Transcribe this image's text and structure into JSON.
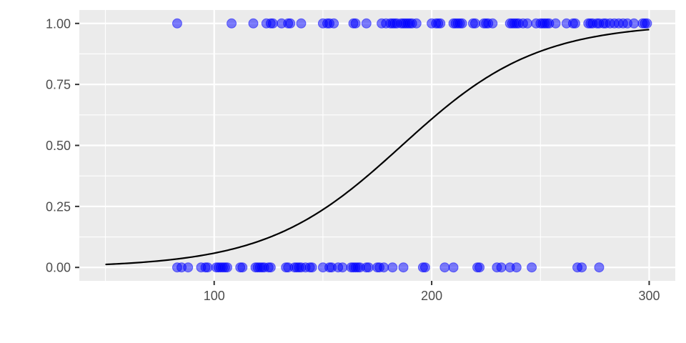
{
  "chart_data": {
    "type": "scatter",
    "title": "",
    "xlabel": "",
    "ylabel": "",
    "xlim": [
      38,
      312
    ],
    "ylim": [
      -0.055,
      1.055
    ],
    "x_ticks": [
      100,
      200,
      300
    ],
    "x_tick_labels": [
      "100",
      "200",
      "300"
    ],
    "y_ticks": [
      0,
      0.25,
      0.5,
      0.75,
      1
    ],
    "y_tick_labels": [
      "0.00",
      "0.25",
      "0.50",
      "0.75",
      "1.00"
    ],
    "grid": true,
    "panel_background": "#ebebeb",
    "grid_color": "#ffffff",
    "point_color": "#0000ff",
    "point_opacity": 0.5,
    "curve_color": "#000000",
    "series": [
      {
        "type": "scatter",
        "y": 1,
        "x": [
          83,
          108,
          118,
          124,
          126,
          127,
          131,
          134,
          135,
          140,
          150,
          152,
          153,
          155,
          164,
          165,
          170,
          177,
          179,
          181,
          182,
          183,
          184,
          186,
          187,
          188,
          189,
          190,
          191,
          193,
          200,
          202,
          203,
          204,
          210,
          211,
          212,
          213,
          214,
          219,
          220,
          224,
          225,
          226,
          228,
          236,
          237,
          238,
          239,
          240,
          242,
          244,
          248,
          250,
          251,
          252,
          253,
          254,
          257,
          262,
          265,
          266,
          272,
          273,
          274,
          276,
          277,
          279,
          280,
          282,
          284,
          286,
          288,
          290,
          293,
          297,
          298,
          299
        ]
      },
      {
        "type": "scatter",
        "y": 0,
        "x": [
          83,
          85,
          88,
          94,
          96,
          97,
          101,
          102,
          103,
          104,
          105,
          106,
          112,
          113,
          119,
          120,
          121,
          122,
          123,
          125,
          126,
          133,
          134,
          137,
          138,
          139,
          140,
          142,
          144,
          145,
          150,
          153,
          154,
          157,
          159,
          163,
          164,
          165,
          166,
          167,
          170,
          171,
          175,
          176,
          178,
          182,
          187,
          196,
          197,
          206,
          210,
          221,
          222,
          230,
          232,
          236,
          239,
          246,
          267,
          269,
          277
        ]
      },
      {
        "type": "line",
        "model": "logistic",
        "intercept": -6.0,
        "slope": 0.0322,
        "x_range": [
          50,
          300
        ]
      }
    ]
  }
}
